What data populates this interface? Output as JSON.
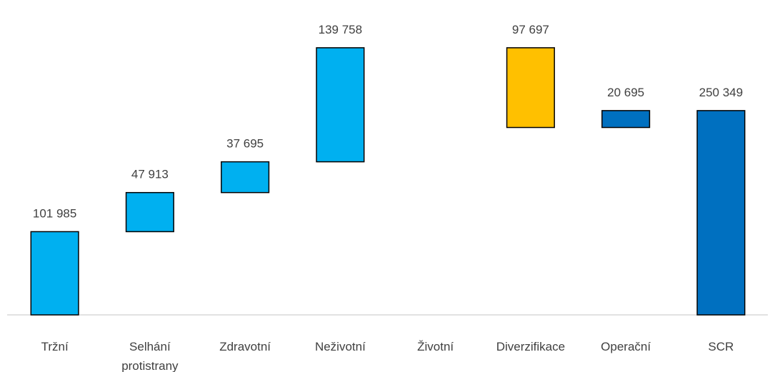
{
  "chart_data": {
    "type": "waterfall",
    "categories": [
      "Tržní",
      "Selhání protistrany",
      "Zdravotní",
      "Neživotní",
      "Životní",
      "Diverzifikace",
      "Operační",
      "SCR"
    ],
    "values": [
      101985,
      47913,
      37695,
      139758,
      null,
      -97697,
      20695,
      250349
    ],
    "value_labels": [
      "101 985",
      "47 913",
      "37 695",
      "139 758",
      null,
      "97 697",
      "20 695",
      "250 349"
    ],
    "is_total": [
      false,
      false,
      false,
      false,
      false,
      false,
      false,
      true
    ],
    "colors": [
      "#00b0f0",
      "#00b0f0",
      "#00b0f0",
      "#00b0f0",
      "#00b0f0",
      "#ffc000",
      "#0070c0",
      "#0070c0"
    ],
    "ylim": [
      0,
      350000
    ]
  }
}
